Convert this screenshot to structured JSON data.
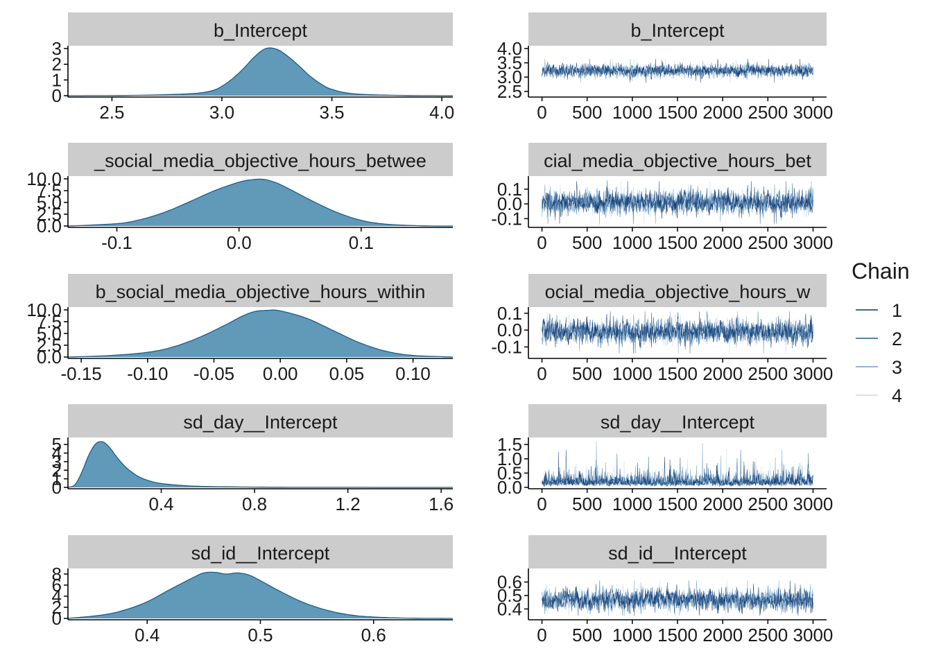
{
  "colors": {
    "strip_bg": "#cccccc",
    "density_fill": "#6199b8",
    "density_line": "#1f5b85",
    "axis": "#000000",
    "chains": [
      "#08306b",
      "#1f5a8e",
      "#6d9cc6",
      "#c6dbef"
    ]
  },
  "legend": {
    "title": "Chain",
    "labels": [
      "1",
      "2",
      "3",
      "4"
    ]
  },
  "chart_data": [
    {
      "type": "area",
      "panel": "density",
      "title": "b_Intercept",
      "xlim": [
        2.3,
        4.05
      ],
      "ylim": [
        0,
        3.0
      ],
      "xticks": [
        2.5,
        3.0,
        3.5,
        4.0
      ],
      "xtick_labels": [
        "2.5",
        "3.0",
        "3.5",
        "4.0"
      ],
      "yticks": [
        0,
        1,
        2,
        3
      ],
      "ytick_labels": [
        "0",
        "1",
        "2",
        "3"
      ],
      "x": [
        2.3,
        2.6,
        2.85,
        2.95,
        3.0,
        3.05,
        3.1,
        3.15,
        3.2,
        3.25,
        3.3,
        3.35,
        3.4,
        3.45,
        3.5,
        3.6,
        3.8,
        4.05
      ],
      "y": [
        0,
        0.02,
        0.12,
        0.3,
        0.6,
        1.1,
        1.75,
        2.5,
        3.0,
        2.95,
        2.5,
        1.9,
        1.25,
        0.75,
        0.4,
        0.12,
        0.02,
        0
      ]
    },
    {
      "type": "line",
      "panel": "trace",
      "title": "b_Intercept",
      "xlim": [
        -150,
        3150
      ],
      "ylim": [
        2.35,
        4.0
      ],
      "xticks": [
        0,
        500,
        1000,
        1500,
        2000,
        2500,
        3000
      ],
      "xtick_labels": [
        "0",
        "500",
        "1000",
        "1500",
        "2000",
        "2500",
        "3000"
      ],
      "yticks": [
        2.5,
        3.0,
        3.5,
        4.0
      ],
      "ytick_labels": [
        "2.5",
        "3.0",
        "3.5",
        "4.0"
      ],
      "iterations": 3000,
      "center": 3.22,
      "spread": 0.13,
      "range": [
        2.4,
        4.0
      ]
    },
    {
      "type": "area",
      "panel": "density",
      "title": "_social_media_objective_hours_betwee",
      "xlim": [
        -0.14,
        0.175
      ],
      "ylim": [
        0,
        10.0
      ],
      "xticks": [
        -0.1,
        0.0,
        0.1
      ],
      "xtick_labels": [
        "-0.1",
        "0.0",
        "0.1"
      ],
      "yticks": [
        0,
        2.5,
        5.0,
        7.5,
        10.0
      ],
      "ytick_labels": [
        "0.0",
        "2.5",
        "5.0",
        "7.5",
        "10.0"
      ],
      "x": [
        -0.14,
        -0.1,
        -0.08,
        -0.06,
        -0.04,
        -0.02,
        0.0,
        0.01,
        0.02,
        0.03,
        0.04,
        0.06,
        0.08,
        0.1,
        0.12,
        0.15,
        0.175
      ],
      "y": [
        0,
        0.5,
        1.4,
        3.0,
        5.2,
        7.5,
        9.3,
        9.8,
        9.9,
        9.2,
        8.0,
        5.3,
        2.9,
        1.2,
        0.4,
        0.05,
        0
      ]
    },
    {
      "type": "line",
      "panel": "trace",
      "title": "cial_media_objective_hours_bet",
      "xlim": [
        -150,
        3150
      ],
      "ylim": [
        -0.15,
        0.17
      ],
      "xticks": [
        0,
        500,
        1000,
        1500,
        2000,
        2500,
        3000
      ],
      "xtick_labels": [
        "0",
        "500",
        "1000",
        "1500",
        "2000",
        "2500",
        "3000"
      ],
      "yticks": [
        -0.1,
        0.0,
        0.1
      ],
      "ytick_labels": [
        "-0.1",
        "0.0",
        "0.1"
      ],
      "iterations": 3000,
      "center": 0.01,
      "spread": 0.045,
      "range": [
        -0.14,
        0.16
      ]
    },
    {
      "type": "area",
      "panel": "density",
      "title": "b_social_media_objective_hours_within",
      "xlim": [
        -0.16,
        0.13
      ],
      "ylim": [
        0,
        10.0
      ],
      "xticks": [
        -0.15,
        -0.1,
        -0.05,
        0.0,
        0.05,
        0.1
      ],
      "xtick_labels": [
        "-0.15",
        "-0.10",
        "-0.05",
        "0.00",
        "0.05",
        "0.10"
      ],
      "yticks": [
        0,
        2.5,
        5.0,
        7.5,
        10.0
      ],
      "ytick_labels": [
        "0.0",
        "2.5",
        "5.0",
        "7.5",
        "10.0"
      ],
      "x": [
        -0.16,
        -0.13,
        -0.1,
        -0.08,
        -0.06,
        -0.04,
        -0.03,
        -0.02,
        -0.01,
        0.0,
        0.02,
        0.04,
        0.06,
        0.08,
        0.1,
        0.13
      ],
      "y": [
        0,
        0.3,
        1.0,
        2.2,
        4.3,
        7.0,
        8.5,
        9.6,
        9.9,
        9.8,
        8.2,
        5.6,
        3.0,
        1.2,
        0.35,
        0
      ]
    },
    {
      "type": "line",
      "panel": "trace",
      "title": "ocial_media_objective_hours_w",
      "xlim": [
        -150,
        3150
      ],
      "ylim": [
        -0.16,
        0.12
      ],
      "xticks": [
        0,
        500,
        1000,
        1500,
        2000,
        2500,
        3000
      ],
      "xtick_labels": [
        "0",
        "500",
        "1000",
        "1500",
        "2000",
        "2500",
        "3000"
      ],
      "yticks": [
        -0.1,
        0.0,
        0.1
      ],
      "ytick_labels": [
        "-0.1",
        "0.0",
        "0.1"
      ],
      "iterations": 3000,
      "center": -0.01,
      "spread": 0.04,
      "range": [
        -0.14,
        0.11
      ]
    },
    {
      "type": "area",
      "panel": "density",
      "title": "sd_day__Intercept",
      "xlim": [
        0.0,
        1.65
      ],
      "ylim": [
        0,
        5.5
      ],
      "xticks": [
        0.4,
        0.8,
        1.2,
        1.6
      ],
      "xtick_labels": [
        "0.4",
        "0.8",
        "1.2",
        "1.6"
      ],
      "yticks": [
        0,
        1,
        2,
        3,
        4,
        5
      ],
      "ytick_labels": [
        "0",
        "1",
        "2",
        "3",
        "4",
        "5"
      ],
      "x": [
        0.0,
        0.03,
        0.06,
        0.09,
        0.12,
        0.15,
        0.18,
        0.21,
        0.25,
        0.3,
        0.35,
        0.4,
        0.5,
        0.6,
        0.7,
        0.8,
        1.0,
        1.65
      ],
      "y": [
        0,
        0.3,
        1.8,
        3.8,
        5.1,
        5.3,
        4.6,
        3.5,
        2.3,
        1.3,
        0.75,
        0.45,
        0.2,
        0.1,
        0.06,
        0.03,
        0.01,
        0
      ]
    },
    {
      "type": "line",
      "panel": "trace",
      "title": "sd_day__Intercept",
      "xlim": [
        -150,
        3150
      ],
      "ylim": [
        0.0,
        1.65
      ],
      "xticks": [
        0,
        500,
        1000,
        1500,
        2000,
        2500,
        3000
      ],
      "xtick_labels": [
        "0",
        "500",
        "1000",
        "1500",
        "2000",
        "2500",
        "3000"
      ],
      "yticks": [
        0.0,
        0.5,
        1.0,
        1.5
      ],
      "ytick_labels": [
        "0.0",
        "0.5",
        "1.0",
        "1.5"
      ],
      "iterations": 3000,
      "center": 0.18,
      "spread": 0.12,
      "range": [
        0.01,
        1.6
      ],
      "skewed": true
    },
    {
      "type": "area",
      "panel": "density",
      "title": "sd_id__Intercept",
      "xlim": [
        0.33,
        0.67
      ],
      "ylim": [
        0,
        8.5
      ],
      "xticks": [
        0.4,
        0.5,
        0.6
      ],
      "xtick_labels": [
        "0.4",
        "0.5",
        "0.6"
      ],
      "yticks": [
        0,
        2,
        4,
        6,
        8
      ],
      "ytick_labels": [
        "0",
        "2",
        "4",
        "6",
        "8"
      ],
      "x": [
        0.33,
        0.36,
        0.38,
        0.4,
        0.42,
        0.44,
        0.45,
        0.46,
        0.47,
        0.48,
        0.49,
        0.5,
        0.52,
        0.54,
        0.56,
        0.58,
        0.6,
        0.63,
        0.67
      ],
      "y": [
        0,
        0.6,
        1.5,
        3.0,
        5.2,
        7.3,
        8.2,
        8.3,
        8.0,
        8.2,
        7.8,
        6.8,
        4.6,
        2.7,
        1.4,
        0.6,
        0.25,
        0.05,
        0
      ]
    },
    {
      "type": "line",
      "panel": "trace",
      "title": "sd_id__Intercept",
      "xlim": [
        -150,
        3150
      ],
      "ylim": [
        0.33,
        0.68
      ],
      "xticks": [
        0,
        500,
        1000,
        1500,
        2000,
        2500,
        3000
      ],
      "xtick_labels": [
        "0",
        "500",
        "1000",
        "1500",
        "2000",
        "2500",
        "3000"
      ],
      "yticks": [
        0.4,
        0.5,
        0.6
      ],
      "ytick_labels": [
        "0.4",
        "0.5",
        "0.6"
      ],
      "iterations": 3000,
      "center": 0.468,
      "spread": 0.045,
      "range": [
        0.35,
        0.66
      ]
    }
  ]
}
